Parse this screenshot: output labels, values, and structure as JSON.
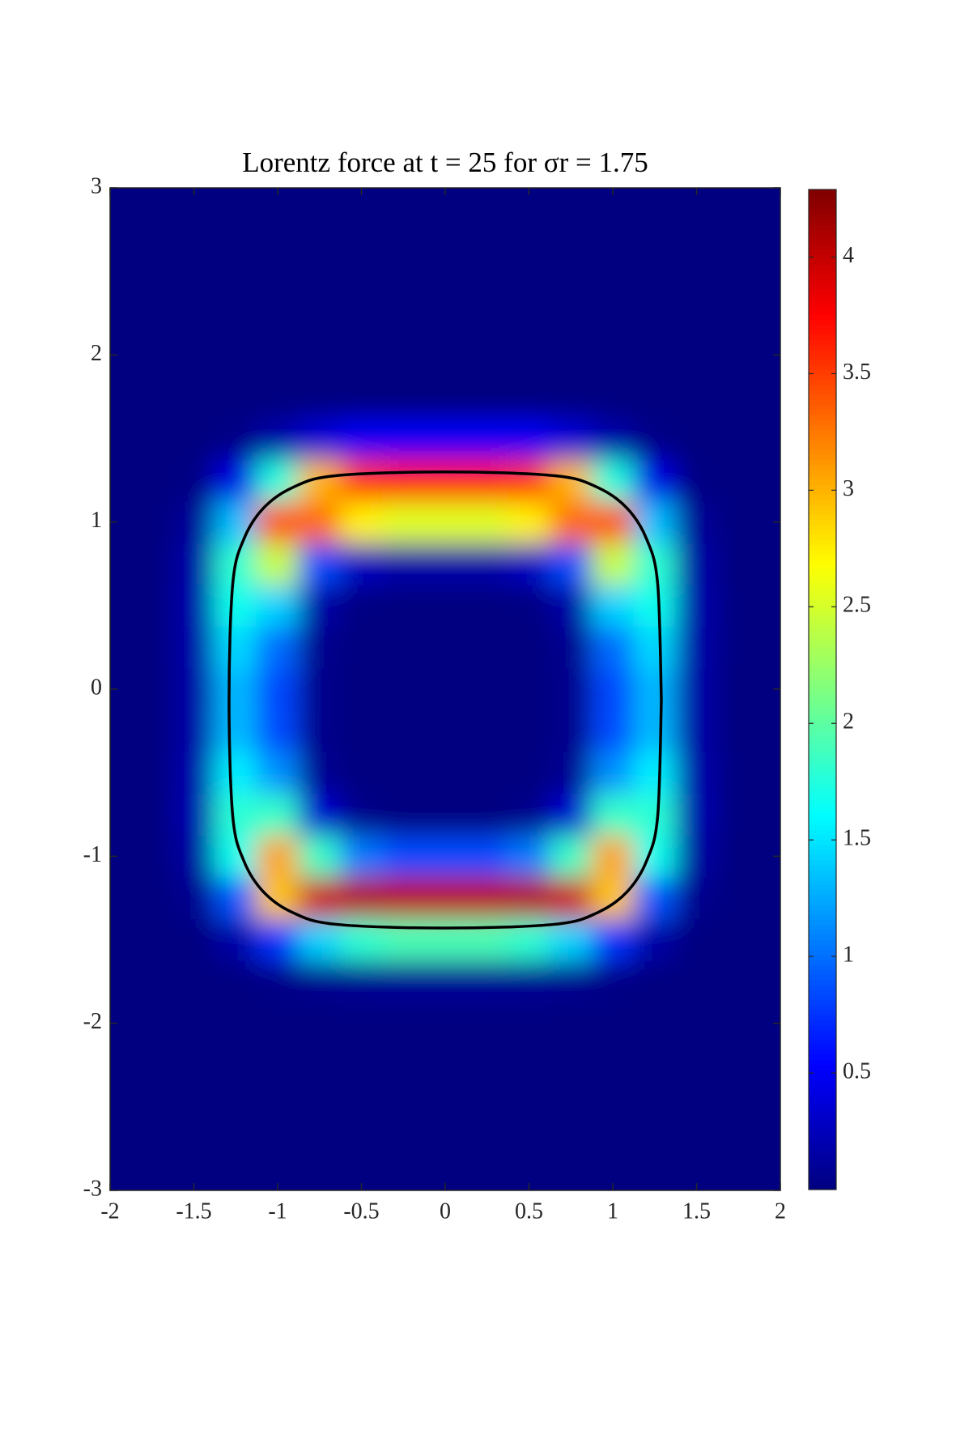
{
  "chart_data": {
    "type": "heatmap",
    "title": "Lorentz force at t = 25 for σr = 1.75",
    "x": [
      -2,
      -1.75,
      -1.5,
      -1.25,
      -1,
      -0.75,
      -0.5,
      -0.25,
      0,
      0.25,
      0.5,
      0.75,
      1,
      1.25,
      1.5,
      1.75,
      2
    ],
    "y": [
      -3,
      -2.75,
      -2.5,
      -2.25,
      -2,
      -1.75,
      -1.5,
      -1.25,
      -1,
      -0.75,
      -0.5,
      -0.25,
      0,
      0.25,
      0.5,
      0.75,
      1,
      1.25,
      1.5,
      1.75,
      2,
      2.25,
      2.5,
      2.75,
      3
    ],
    "z": [
      [
        0,
        0,
        0,
        0,
        0,
        0,
        0,
        0,
        0,
        0,
        0,
        0,
        0,
        0,
        0,
        0,
        0
      ],
      [
        0,
        0,
        0,
        0,
        0,
        0,
        0,
        0,
        0,
        0,
        0,
        0,
        0,
        0,
        0,
        0,
        0
      ],
      [
        0,
        0,
        0,
        0,
        0,
        0,
        0,
        0,
        0,
        0,
        0,
        0,
        0,
        0,
        0,
        0,
        0
      ],
      [
        0,
        0,
        0,
        0,
        0,
        0,
        0,
        0,
        0,
        0,
        0,
        0,
        0,
        0,
        0,
        0,
        0
      ],
      [
        0,
        0,
        0,
        0,
        0,
        0,
        0,
        0,
        0,
        0,
        0,
        0,
        0,
        0,
        0,
        0,
        0
      ],
      [
        0,
        0,
        0,
        0,
        0.03,
        0.06,
        0.08,
        0.09,
        0.09,
        0.09,
        0.08,
        0.06,
        0.03,
        0,
        0,
        0,
        0
      ],
      [
        0,
        0,
        0,
        0.16,
        0.74,
        1.43,
        1.8,
        1.91,
        1.91,
        1.91,
        1.8,
        1.43,
        0.74,
        0.16,
        0,
        0,
        0
      ],
      [
        0,
        0,
        0.06,
        0.9,
        2.92,
        3.97,
        4.07,
        4.05,
        4.05,
        4.05,
        4.07,
        3.97,
        2.92,
        0.9,
        0.06,
        0,
        0
      ],
      [
        0,
        0,
        0.14,
        1.68,
        3.08,
        1.85,
        1.05,
        0.85,
        0.85,
        0.85,
        1.05,
        1.85,
        3.08,
        1.68,
        0.14,
        0,
        0
      ],
      [
        0,
        0,
        0.19,
        1.78,
        1.84,
        0.34,
        0.05,
        0,
        0,
        0,
        0.05,
        0.34,
        1.84,
        1.78,
        0.19,
        0,
        0
      ],
      [
        0,
        0,
        0.18,
        1.55,
        1.14,
        0.08,
        0,
        0,
        0,
        0,
        0,
        0.08,
        1.14,
        1.55,
        0.18,
        0,
        0
      ],
      [
        0,
        0,
        0.16,
        1.32,
        0.84,
        0.05,
        0,
        0,
        0,
        0,
        0,
        0.05,
        0.84,
        1.32,
        0.16,
        0,
        0
      ],
      [
        0,
        0,
        0.16,
        1.31,
        0.83,
        0.05,
        0,
        0,
        0,
        0,
        0,
        0.05,
        0.83,
        1.31,
        0.16,
        0,
        0
      ],
      [
        0,
        0,
        0.17,
        1.45,
        0.98,
        0.06,
        0,
        0,
        0,
        0,
        0,
        0.06,
        0.98,
        1.45,
        0.17,
        0,
        0
      ],
      [
        0,
        0,
        0.18,
        1.68,
        1.42,
        0.16,
        0.01,
        0,
        0,
        0,
        0.01,
        0.16,
        1.42,
        1.68,
        0.18,
        0,
        0
      ],
      [
        0,
        0,
        0.16,
        1.8,
        2.45,
        0.85,
        0.27,
        0.17,
        0.17,
        0.17,
        0.27,
        0.85,
        2.45,
        1.8,
        0.16,
        0,
        0
      ],
      [
        0,
        0,
        0.1,
        1.34,
        3.39,
        3.31,
        2.73,
        2.55,
        2.55,
        2.55,
        2.73,
        3.31,
        3.39,
        1.34,
        0.1,
        0,
        0
      ],
      [
        0,
        0,
        0.02,
        0.43,
        1.75,
        2.99,
        3.54,
        3.66,
        3.66,
        3.66,
        3.54,
        2.99,
        1.75,
        0.43,
        0.02,
        0,
        0
      ],
      [
        0,
        0,
        0,
        0.03,
        0.17,
        0.36,
        0.49,
        0.5,
        0.5,
        0.5,
        0.49,
        0.36,
        0.17,
        0.03,
        0,
        0,
        0
      ],
      [
        0,
        0,
        0,
        0,
        0,
        0,
        0,
        0,
        0,
        0,
        0,
        0,
        0,
        0,
        0,
        0,
        0
      ],
      [
        0,
        0,
        0,
        0,
        0,
        0,
        0,
        0,
        0,
        0,
        0,
        0,
        0,
        0,
        0,
        0,
        0
      ],
      [
        0,
        0,
        0,
        0,
        0,
        0,
        0,
        0,
        0,
        0,
        0,
        0,
        0,
        0,
        0,
        0,
        0
      ],
      [
        0,
        0,
        0,
        0,
        0,
        0,
        0,
        0,
        0,
        0,
        0,
        0,
        0,
        0,
        0,
        0,
        0
      ],
      [
        0,
        0,
        0,
        0,
        0,
        0,
        0,
        0,
        0,
        0,
        0,
        0,
        0,
        0,
        0,
        0,
        0
      ],
      [
        0,
        0,
        0,
        0,
        0,
        0,
        0,
        0,
        0,
        0,
        0,
        0,
        0,
        0,
        0,
        0,
        0
      ]
    ],
    "colormap": "jet",
    "clim": [
      0,
      4.29
    ],
    "cticks": [
      0.5,
      1,
      1.5,
      2,
      2.5,
      3,
      3.5,
      4
    ],
    "xlim": [
      -2,
      2
    ],
    "xticks": [
      -2,
      -1.5,
      -1,
      -0.5,
      0,
      0.5,
      1,
      1.5,
      2
    ],
    "ylim": [
      -3,
      3
    ],
    "yticks": [
      -3,
      -2,
      -1,
      0,
      1,
      2,
      3
    ],
    "contour": {
      "color": "#000000",
      "x": [
        1.29,
        1.268,
        1.201,
        1.085,
        0.912,
        0.657,
        0,
        -0.657,
        -0.912,
        -1.085,
        -1.201,
        -1.268,
        -1.29,
        -1.268,
        -1.201,
        -1.085,
        -0.912,
        -0.657,
        0,
        0.657,
        0.912,
        1.085,
        1.201,
        1.268,
        1.29
      ],
      "y": [
        -0.065,
        0.63,
        0.9,
        1.083,
        1.206,
        1.277,
        1.3,
        1.277,
        1.206,
        1.083,
        0.9,
        0.63,
        -0.065,
        -0.76,
        -1.03,
        -1.213,
        -1.336,
        -1.407,
        -1.43,
        -1.407,
        -1.336,
        -1.213,
        -1.03,
        -0.76,
        -0.065
      ]
    }
  }
}
